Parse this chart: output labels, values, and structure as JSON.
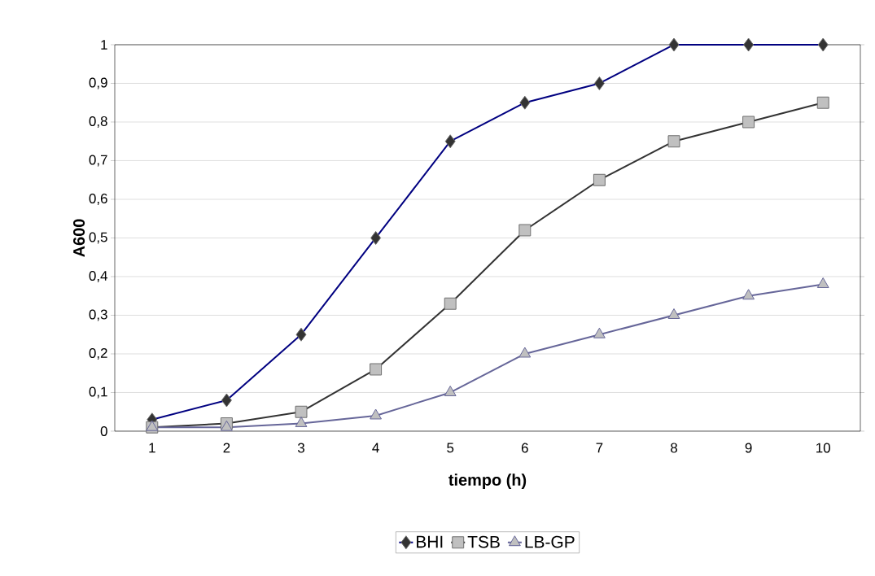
{
  "chart_data": {
    "type": "line",
    "xlabel": "tiempo (h)",
    "ylabel": "A600",
    "categories": [
      "1",
      "2",
      "3",
      "4",
      "5",
      "6",
      "7",
      "8",
      "9",
      "10"
    ],
    "series": [
      {
        "name": "BHI",
        "color": "#000080",
        "marker": "diamond",
        "values": [
          0.03,
          0.08,
          0.25,
          0.5,
          0.75,
          0.85,
          0.9,
          1,
          1,
          1
        ]
      },
      {
        "name": "TSB",
        "color": "#333333",
        "marker": "square",
        "values": [
          0.01,
          0.02,
          0.05,
          0.16,
          0.33,
          0.52,
          0.65,
          0.75,
          0.8,
          0.85
        ]
      },
      {
        "name": "LB-GP",
        "color": "#666699",
        "marker": "triangle",
        "values": [
          0.01,
          0.01,
          0.02,
          0.04,
          0.1,
          0.2,
          0.25,
          0.3,
          0.35,
          0.38
        ]
      }
    ],
    "ylim": [
      0,
      1
    ],
    "yticks": [
      0,
      {
        "value": 0.1,
        "label": "0,1"
      },
      {
        "value": 0.2,
        "label": "0,2"
      },
      {
        "value": 0.3,
        "label": "0,3"
      },
      {
        "value": 0.4,
        "label": "0,4"
      },
      {
        "value": 0.5,
        "label": "0,5"
      },
      {
        "value": 0.6,
        "label": "0,6"
      },
      {
        "value": 0.7,
        "label": "0,7"
      },
      {
        "value": 0.8,
        "label": "0,8"
      },
      {
        "value": 0.9,
        "label": "0,9"
      },
      1
    ],
    "grid": "y",
    "legend": "bottom",
    "line_style": "solid"
  }
}
